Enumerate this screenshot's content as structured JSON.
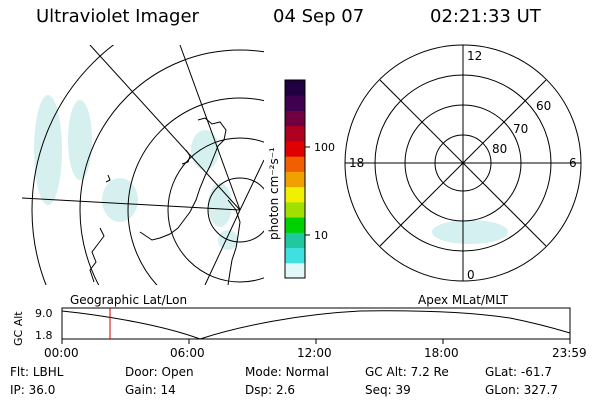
{
  "header": {
    "instrument": "Ultraviolet Imager",
    "date": "04 Sep 07",
    "time": "02:21:33 UT"
  },
  "colorbar": {
    "unit_label": "photon cm⁻²s⁻¹",
    "ticks": [
      "100",
      "10"
    ],
    "colors": [
      "#e0f8f8",
      "#40e0e0",
      "#20c8a0",
      "#00d000",
      "#a0e000",
      "#f0f000",
      "#f0a000",
      "#f06000",
      "#e00000",
      "#b00020",
      "#700040",
      "#400050",
      "#200040"
    ]
  },
  "left_map": {
    "label": "Geographic Lat/Lon"
  },
  "right_map": {
    "label": "Apex MLat/MLT",
    "mlt_labels": {
      "top": "12",
      "left": "18",
      "right": "6",
      "bottom": "0"
    },
    "lat_labels": [
      "60",
      "70",
      "80"
    ]
  },
  "altitude_plot": {
    "ylabel": "GC Alt",
    "yticks": [
      "9.0",
      "1.8"
    ],
    "xticks": [
      "00:00",
      "06:00",
      "12:00",
      "18:00",
      "23:59"
    ],
    "marker_time": "02:21"
  },
  "info": {
    "row1": [
      {
        "label": "Flt:",
        "value": "LBHL"
      },
      {
        "label": "Door:",
        "value": "Open"
      },
      {
        "label": "Mode:",
        "value": "Normal"
      },
      {
        "label": "GC Alt:",
        "value": "7.2 Re"
      },
      {
        "label": "GLat:",
        "value": "-61.7"
      }
    ],
    "row2": [
      {
        "label": "IP:",
        "value": "36.0"
      },
      {
        "label": "Gain:",
        "value": "14"
      },
      {
        "label": "Dsp:",
        "value": "2.6"
      },
      {
        "label": "Seq:",
        "value": "39"
      },
      {
        "label": "GLon:",
        "value": "327.7"
      }
    ]
  }
}
